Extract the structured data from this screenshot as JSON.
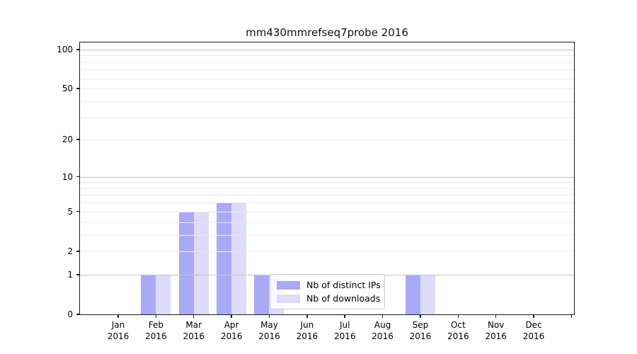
{
  "title": "mm430mmrefseq7probe 2016",
  "chart_data": {
    "type": "bar",
    "title": "mm430mmrefseq7probe 2016",
    "categories": [
      "Jan 2016",
      "Feb 2016",
      "Mar 2016",
      "Apr 2016",
      "May 2016",
      "Jun 2016",
      "Jul 2016",
      "Aug 2016",
      "Sep 2016",
      "Oct 2016",
      "Nov 2016",
      "Dec 2016"
    ],
    "series": [
      {
        "name": "Nb of distinct IPs",
        "color": "#a9a9f5",
        "values": [
          0,
          1,
          5,
          6,
          1,
          0,
          0,
          0,
          1,
          0,
          0,
          0
        ]
      },
      {
        "name": "Nb of downloads",
        "color": "#dcdcf9",
        "values": [
          0,
          1,
          5,
          6,
          1,
          0,
          0,
          0,
          1,
          0,
          0,
          0
        ]
      }
    ],
    "yscale": "log1p",
    "ylabel": "",
    "xlabel": "",
    "ytick_values": [
      0,
      1,
      2,
      5,
      10,
      20,
      50,
      100
    ],
    "ytick_labels": [
      "0",
      "1",
      "2",
      "5",
      "10",
      "20",
      "50",
      "100"
    ],
    "major_grid_values": [
      1,
      10,
      100
    ],
    "minor_grid_values": [
      2,
      3,
      4,
      5,
      6,
      7,
      8,
      9,
      20,
      30,
      40,
      50,
      60,
      70,
      80,
      90
    ],
    "ylim": [
      0,
      113
    ],
    "grid": "horizontal",
    "legend_position": "lower center"
  },
  "legend": {
    "items": [
      {
        "label": "Nb of distinct IPs",
        "color": "#a9a9f5"
      },
      {
        "label": "Nb of downloads",
        "color": "#dcdcf9"
      }
    ]
  },
  "colors": {
    "bar_distinct_ips": "#a9a9f5",
    "bar_downloads": "#dcdcf9",
    "grid_major": "#c3c3c3",
    "grid_minor": "#e9e9e9",
    "axis": "#1a1a1a",
    "background": "#ffffff",
    "legend_border": "#cccccc"
  }
}
